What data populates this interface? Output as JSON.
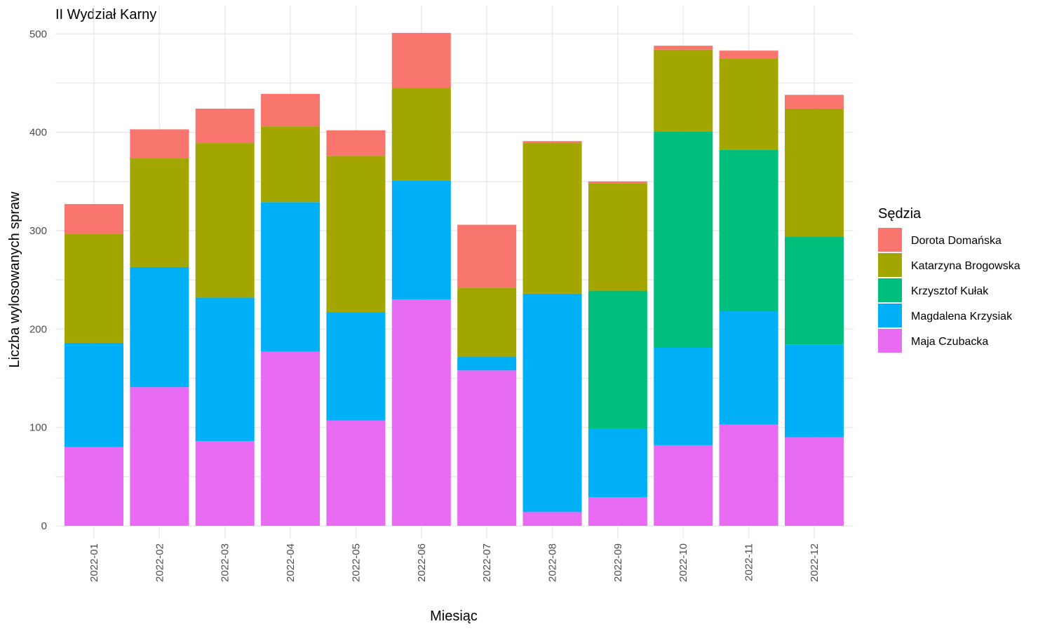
{
  "chart_data": {
    "type": "bar",
    "stacked": true,
    "title": "II Wydział Karny",
    "xlabel": "Miesiąc",
    "ylabel": "Liczba wylosowanych spraw",
    "ylim": [
      0,
      500
    ],
    "yticks": [
      0,
      100,
      200,
      300,
      400,
      500
    ],
    "grid": true,
    "legend_title": "Sędzia",
    "legend_position": "right",
    "categories": [
      "2022-01",
      "2022-02",
      "2022-03",
      "2022-04",
      "2022-05",
      "2022-06",
      "2022-07",
      "2022-08",
      "2022-09",
      "2022-10",
      "2022-11",
      "2022-12"
    ],
    "series": [
      {
        "name": "Maja Czubacka",
        "color": "#E76BF3",
        "values": [
          80,
          141,
          86,
          177,
          107,
          230,
          158,
          14,
          29,
          82,
          103,
          90
        ]
      },
      {
        "name": "Magdalena Krzysiak",
        "color": "#00B0F6",
        "values": [
          106,
          122,
          146,
          152,
          110,
          121,
          14,
          222,
          70,
          99,
          115,
          94
        ]
      },
      {
        "name": "Krzysztof Kułak",
        "color": "#00BF7D",
        "values": [
          0,
          0,
          0,
          0,
          0,
          0,
          0,
          0,
          140,
          220,
          164,
          110
        ]
      },
      {
        "name": "Katarzyna Brogowska",
        "color": "#A3A500",
        "values": [
          111,
          111,
          157,
          77,
          159,
          94,
          70,
          153,
          109,
          83,
          93,
          130
        ]
      },
      {
        "name": "Dorota Domańska",
        "color": "#F8766D",
        "values": [
          30,
          29,
          35,
          33,
          26,
          56,
          64,
          2,
          2,
          4,
          8,
          14
        ]
      }
    ],
    "legend_order": [
      "Dorota Domańska",
      "Katarzyna Brogowska",
      "Krzysztof Kułak",
      "Magdalena Krzysiak",
      "Maja Czubacka"
    ]
  }
}
